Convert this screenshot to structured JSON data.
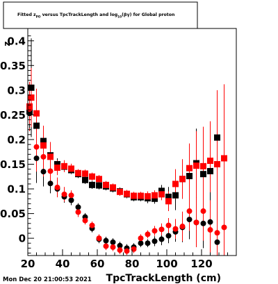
{
  "chart_data": {
    "type": "scatter",
    "title": "Fitted  z_{PO}  versus TpcTrackLength and log_{10}(βγ) for Global proton",
    "title_parts": {
      "a": "Fitted  z",
      "sub1": "PO",
      "b": "  versus TpcTrackLength and log",
      "sub2": "10",
      "c": "(βγ) for Global proton"
    },
    "xlabel": "TpcTrackLength (cm)",
    "ylabel": "z",
    "xlim": [
      20,
      140
    ],
    "ylim": [
      -0.035,
      0.425
    ],
    "x_ticks": [
      {
        "v": 20,
        "label": "20"
      },
      {
        "v": 40,
        "label": "40"
      },
      {
        "v": 60,
        "label": "60"
      },
      {
        "v": 80,
        "label": "80"
      },
      {
        "v": 100,
        "label": "100"
      },
      {
        "v": 120,
        "label": "120"
      }
    ],
    "y_ticks": [
      {
        "v": 0,
        "label": "0"
      },
      {
        "v": 0.05,
        "label": "0.05"
      },
      {
        "v": 0.1,
        "label": "0.1"
      },
      {
        "v": 0.15,
        "label": "0.15"
      },
      {
        "v": 0.2,
        "label": "0.2"
      },
      {
        "v": 0.25,
        "label": "0.25"
      },
      {
        "v": 0.3,
        "label": "0.3"
      },
      {
        "v": 0.35,
        "label": "0.35"
      },
      {
        "v": 0.4,
        "label": "0.4"
      }
    ],
    "series": [
      {
        "style": "square",
        "color": "#000000",
        "points": [
          [
            21,
            0.257,
            0.04
          ],
          [
            22,
            0.305,
            0.1
          ],
          [
            25,
            0.228,
            0.05
          ],
          [
            29,
            0.197,
            0.03
          ],
          [
            33,
            0.168,
            0.02
          ],
          [
            37,
            0.15,
            0.012
          ],
          [
            41,
            0.145,
            0.01
          ],
          [
            45,
            0.138,
            0.008
          ],
          [
            49,
            0.13,
            0.008
          ],
          [
            53,
            0.118,
            0.008
          ],
          [
            57,
            0.108,
            0.008
          ],
          [
            61,
            0.107,
            0.008
          ],
          [
            65,
            0.105,
            0.008
          ],
          [
            69,
            0.101,
            0.008
          ],
          [
            73,
            0.095,
            0.008
          ],
          [
            77,
            0.089,
            0.008
          ],
          [
            81,
            0.083,
            0.008
          ],
          [
            85,
            0.083,
            0.008
          ],
          [
            89,
            0.081,
            0.01
          ],
          [
            93,
            0.08,
            0.01
          ],
          [
            97,
            0.096,
            0.012
          ],
          [
            101,
            0.084,
            0.02
          ],
          [
            105,
            0.087,
            0.03
          ],
          [
            109,
            0.12,
            0.04
          ],
          [
            113,
            0.126,
            0.05
          ],
          [
            117,
            0.152,
            0.07
          ],
          [
            121,
            0.13,
            0.06
          ],
          [
            125,
            0.136,
            0.06
          ],
          [
            129,
            0.204,
            0.08
          ]
        ]
      },
      {
        "style": "square",
        "color": "#ff0000",
        "points": [
          [
            21,
            0.267,
            0.05
          ],
          [
            22,
            0.285,
            0.06
          ],
          [
            25,
            0.253,
            0.05
          ],
          [
            29,
            0.188,
            0.04
          ],
          [
            33,
            0.165,
            0.03
          ],
          [
            37,
            0.143,
            0.015
          ],
          [
            41,
            0.146,
            0.012
          ],
          [
            45,
            0.141,
            0.01
          ],
          [
            49,
            0.132,
            0.008
          ],
          [
            53,
            0.131,
            0.008
          ],
          [
            57,
            0.125,
            0.008
          ],
          [
            61,
            0.12,
            0.008
          ],
          [
            65,
            0.108,
            0.008
          ],
          [
            69,
            0.103,
            0.008
          ],
          [
            73,
            0.094,
            0.008
          ],
          [
            77,
            0.09,
            0.008
          ],
          [
            81,
            0.086,
            0.008
          ],
          [
            85,
            0.086,
            0.008
          ],
          [
            89,
            0.085,
            0.01
          ],
          [
            93,
            0.087,
            0.01
          ],
          [
            97,
            0.089,
            0.012
          ],
          [
            101,
            0.075,
            0.02
          ],
          [
            105,
            0.11,
            0.03
          ],
          [
            109,
            0.12,
            0.04
          ],
          [
            113,
            0.142,
            0.05
          ],
          [
            117,
            0.147,
            0.07
          ],
          [
            121,
            0.146,
            0.08
          ],
          [
            125,
            0.157,
            0.08
          ],
          [
            129,
            0.15,
            0.15
          ],
          [
            133,
            0.162,
            0.15
          ]
        ]
      },
      {
        "style": "circle",
        "color": "#000000",
        "points": [
          [
            21,
            0.253,
            0.03
          ],
          [
            25,
            0.162,
            0.05
          ],
          [
            29,
            0.135,
            0.03
          ],
          [
            33,
            0.111,
            0.02
          ],
          [
            37,
            0.1,
            0.015
          ],
          [
            41,
            0.084,
            0.012
          ],
          [
            45,
            0.077,
            0.01
          ],
          [
            49,
            0.063,
            0.008
          ],
          [
            53,
            0.043,
            0.008
          ],
          [
            57,
            0.02,
            0.008
          ],
          [
            61,
            -0.002,
            0.008
          ],
          [
            65,
            -0.005,
            0.008
          ],
          [
            69,
            -0.008,
            0.008
          ],
          [
            73,
            -0.015,
            0.008
          ],
          [
            77,
            -0.02,
            0.008
          ],
          [
            81,
            -0.018,
            0.008
          ],
          [
            85,
            -0.01,
            0.008
          ],
          [
            89,
            -0.01,
            0.008
          ],
          [
            93,
            -0.006,
            0.01
          ],
          [
            97,
            -0.002,
            0.012
          ],
          [
            101,
            0.005,
            0.015
          ],
          [
            105,
            0.013,
            0.02
          ],
          [
            109,
            0.022,
            0.03
          ],
          [
            113,
            0.038,
            0.04
          ],
          [
            117,
            0.032,
            0.05
          ],
          [
            121,
            0.03,
            0.05
          ],
          [
            125,
            0.033,
            0.06
          ],
          [
            129,
            -0.008,
            0.1
          ]
        ]
      },
      {
        "style": "circle",
        "color": "#ff0000",
        "points": [
          [
            21,
            0.262,
            0.03
          ],
          [
            25,
            0.185,
            0.05
          ],
          [
            29,
            0.165,
            0.04
          ],
          [
            33,
            0.136,
            0.03
          ],
          [
            37,
            0.103,
            0.02
          ],
          [
            41,
            0.089,
            0.015
          ],
          [
            45,
            0.087,
            0.01
          ],
          [
            49,
            0.053,
            0.01
          ],
          [
            53,
            0.036,
            0.008
          ],
          [
            57,
            0.026,
            0.008
          ],
          [
            61,
            0.0,
            0.008
          ],
          [
            65,
            -0.016,
            0.008
          ],
          [
            69,
            -0.018,
            0.008
          ],
          [
            73,
            -0.024,
            0.008
          ],
          [
            77,
            -0.026,
            0.008
          ],
          [
            81,
            -0.022,
            0.008
          ],
          [
            85,
            0.0,
            0.008
          ],
          [
            89,
            0.008,
            0.008
          ],
          [
            93,
            0.015,
            0.01
          ],
          [
            97,
            0.018,
            0.012
          ],
          [
            101,
            0.026,
            0.015
          ],
          [
            105,
            0.019,
            0.02
          ],
          [
            109,
            0.024,
            0.03
          ],
          [
            113,
            0.055,
            0.04
          ],
          [
            117,
            0.032,
            0.05
          ],
          [
            121,
            0.055,
            0.06
          ],
          [
            125,
            0.017,
            0.06
          ],
          [
            129,
            0.011,
            0.1
          ],
          [
            133,
            0.022,
            0.12
          ]
        ]
      }
    ],
    "grid": false,
    "legend": "none",
    "timestamp": "Mon Dec 20 21:00:53 2021"
  }
}
